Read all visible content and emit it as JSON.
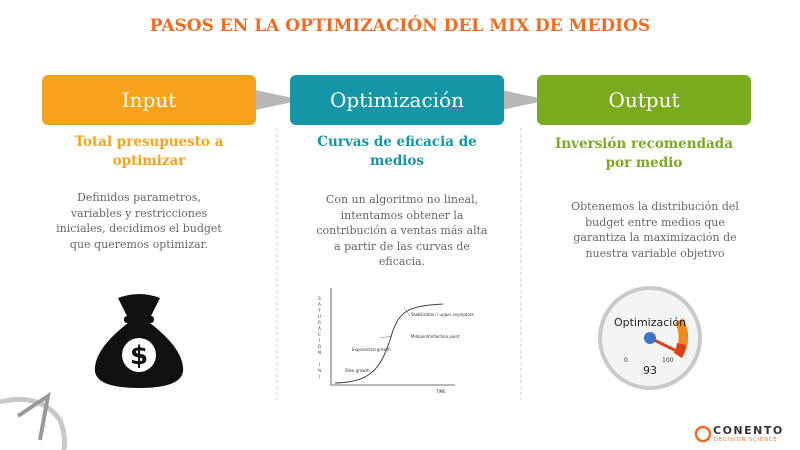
{
  "title": "PASOS EN LA OPTIMIZACIÓN DEL MIX DE MEDIOS",
  "steps": [
    {
      "label": "Input",
      "subtitle": "Total presupuesto a optimizar",
      "description": "Definidos parametros, variables y restricciones iniciales, decidimos el budget que queremos optimizar."
    },
    {
      "label": "Optimización",
      "subtitle": "Curvas de eficacia de medios",
      "description": "Con un algoritmo no lineal, intentamos obtener la contribución a ventas más alta a partir de las curvas de eficacia."
    },
    {
      "label": "Output",
      "subtitle": "Inversión recomendada por medio",
      "description": "Obtenemos la distribución del budget entre medios que garantiza la maximización de nuestra variable objetivo"
    }
  ],
  "curve": {
    "y_label": "SATURACIÓN (%)",
    "x_label": "TIME",
    "annotations": [
      "Stabilization / upper asymptote",
      "Midpoint/inflection point",
      "Exponential growth",
      "Slow growth"
    ]
  },
  "gauge": {
    "label": "Optimización",
    "min": 0,
    "max": 100,
    "value": 93
  },
  "logo": {
    "name": "CONENTO",
    "tagline": "DECISION SCIENCE"
  }
}
